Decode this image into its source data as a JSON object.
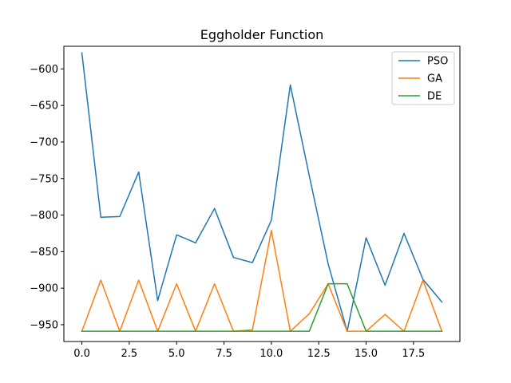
{
  "chart_data": {
    "type": "line",
    "title": "Eggholder Function",
    "xlabel": "",
    "ylabel": "",
    "xlim": [
      -0.95,
      19.95
    ],
    "ylim": [
      -973,
      -569
    ],
    "x_ticks": [
      0,
      2.5,
      5,
      7.5,
      10,
      12.5,
      15,
      17.5
    ],
    "x_tick_labels": [
      "0.0",
      "2.5",
      "5.0",
      "7.5",
      "10.0",
      "12.5",
      "15.0",
      "17.5"
    ],
    "y_ticks": [
      -600,
      -650,
      -700,
      -750,
      -800,
      -850,
      -900,
      -950
    ],
    "y_tick_labels": [
      "−600",
      "−650",
      "−700",
      "−750",
      "−800",
      "−850",
      "−900",
      "−950"
    ],
    "grid": false,
    "legend_position": "top-right",
    "x": [
      0,
      1,
      2,
      3,
      4,
      5,
      6,
      7,
      8,
      9,
      10,
      11,
      12,
      13,
      14,
      15,
      16,
      17,
      18,
      19
    ],
    "series": [
      {
        "name": "PSO",
        "color": "#1f77b4",
        "values": [
          -578,
          -803,
          -802,
          -741,
          -917,
          -827,
          -838,
          -791,
          -858,
          -865,
          -807,
          -622,
          -746,
          -867,
          -959,
          -831,
          -896,
          -825,
          -888,
          -919
        ]
      },
      {
        "name": "GA",
        "color": "#ff7f0e",
        "values": [
          -959,
          -889,
          -959,
          -889,
          -959,
          -894,
          -959,
          -894,
          -959,
          -957,
          -821,
          -959,
          -935,
          -894,
          -959,
          -959,
          -936,
          -959,
          -889,
          -959
        ]
      },
      {
        "name": "DE",
        "color": "#2ca02c",
        "values": [
          -959,
          -959,
          -959,
          -959,
          -959,
          -959,
          -959,
          -959,
          -959,
          -959,
          -959,
          -959,
          -959,
          -894,
          -894,
          -959,
          -959,
          -959,
          -959,
          -959
        ]
      }
    ]
  }
}
